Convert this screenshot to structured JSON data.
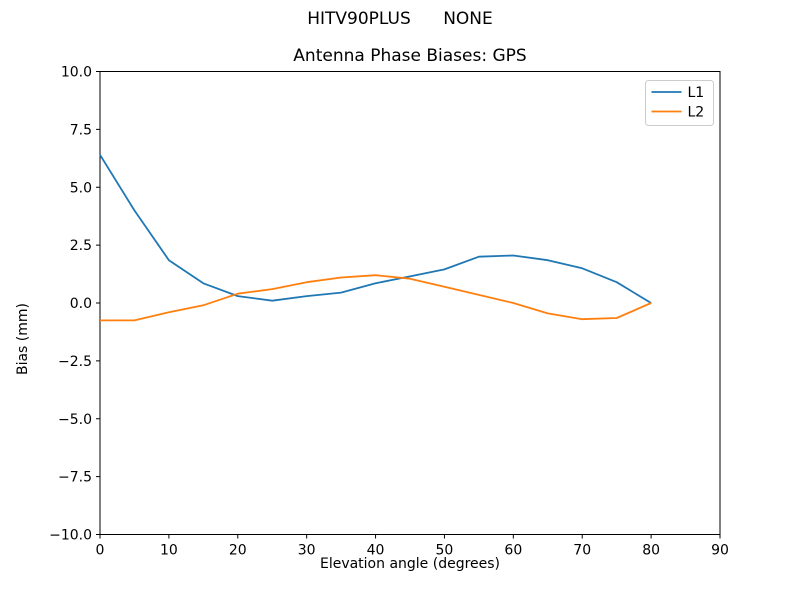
{
  "figure": {
    "suptitle": "HITV90PLUS      NONE",
    "background": "#ffffff"
  },
  "chart_data": {
    "type": "line",
    "title": "Antenna Phase Biases: GPS",
    "xlabel": "Elevation angle (degrees)",
    "ylabel": "Bias (mm)",
    "xlim": [
      0,
      90
    ],
    "ylim": [
      -10,
      10
    ],
    "grid": false,
    "xticks": {
      "values": [
        0,
        10,
        20,
        30,
        40,
        50,
        60,
        70,
        80,
        90
      ],
      "labels": [
        "0",
        "10",
        "20",
        "30",
        "40",
        "50",
        "60",
        "70",
        "80",
        "90"
      ]
    },
    "yticks": {
      "values": [
        -10,
        -7.5,
        -5,
        -2.5,
        0,
        2.5,
        5,
        7.5,
        10
      ],
      "labels": [
        "−10.0",
        "−7.5",
        "−5.0",
        "−2.5",
        "0.0",
        "2.5",
        "5.0",
        "7.5",
        "10.0"
      ]
    },
    "x": [
      0,
      5,
      10,
      15,
      20,
      25,
      30,
      35,
      40,
      45,
      50,
      55,
      60,
      65,
      70,
      75,
      80
    ],
    "series": [
      {
        "name": "L1",
        "color": "#1f77b4",
        "values": [
          6.4,
          4.0,
          1.85,
          0.85,
          0.3,
          0.1,
          0.3,
          0.45,
          0.85,
          1.15,
          1.45,
          2.0,
          2.05,
          1.85,
          1.5,
          0.9,
          0.0
        ]
      },
      {
        "name": "L2",
        "color": "#ff7f0e",
        "values": [
          -0.75,
          -0.75,
          -0.4,
          -0.1,
          0.4,
          0.6,
          0.9,
          1.1,
          1.2,
          1.05,
          0.7,
          0.35,
          0.0,
          -0.45,
          -0.7,
          -0.65,
          0.0
        ]
      }
    ],
    "legend": {
      "position": "upper right",
      "entries": [
        "L1",
        "L2"
      ]
    }
  }
}
